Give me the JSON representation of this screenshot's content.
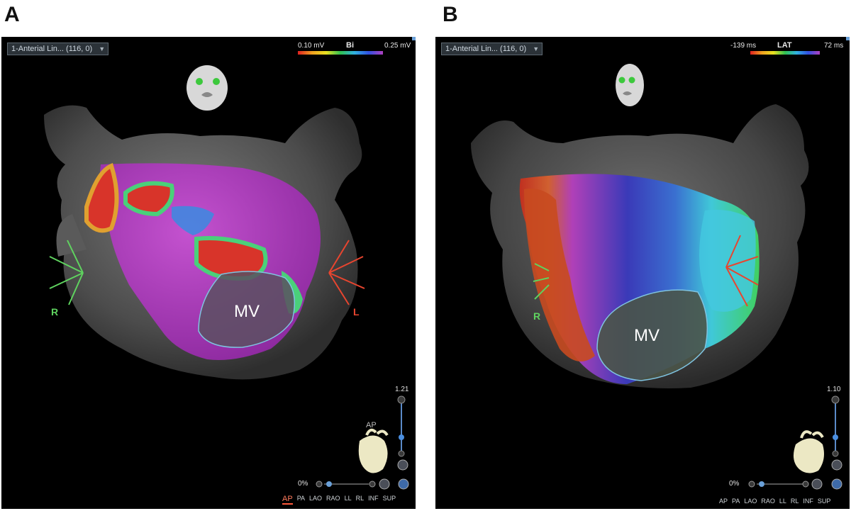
{
  "figure": {
    "panel_a_letter": "A",
    "panel_b_letter": "B"
  },
  "panel_a": {
    "dropdown_label": "1-Anterial Lin... (116, 0)",
    "scale": {
      "min": "0.10 mV",
      "title": "Bi",
      "max": "0.25 mV"
    },
    "mv_label": "MV",
    "right_marker": "R",
    "left_marker": "L",
    "zoom_value": "1.21",
    "transparency": "0%",
    "orientation_label": "AP",
    "view_buttons": [
      "AP",
      "PA",
      "LAO",
      "RAO",
      "LL",
      "RL",
      "INF",
      "SUP"
    ],
    "active_view": "AP"
  },
  "panel_b": {
    "dropdown_label": "1-Anterial Lin... (116, 0)",
    "scale": {
      "min": "-139 ms",
      "title": "LAT",
      "max": "72 ms"
    },
    "mv_label": "MV",
    "right_marker": "R",
    "zoom_value": "1.10",
    "transparency": "0%",
    "view_buttons": [
      "AP",
      "PA",
      "LAO",
      "RAO",
      "LL",
      "RL",
      "INF",
      "SUP"
    ]
  },
  "colors": {
    "background": "#000000",
    "dropdown_bg": "#2b3238",
    "voltage_purple": "#b33cc0",
    "scar_red": "#d8342a",
    "right_marker": "#5fd35f",
    "left_marker": "#e8452f",
    "accent_blue": "#6aa0d8"
  },
  "chevron_icon": "chevron-down-icon"
}
